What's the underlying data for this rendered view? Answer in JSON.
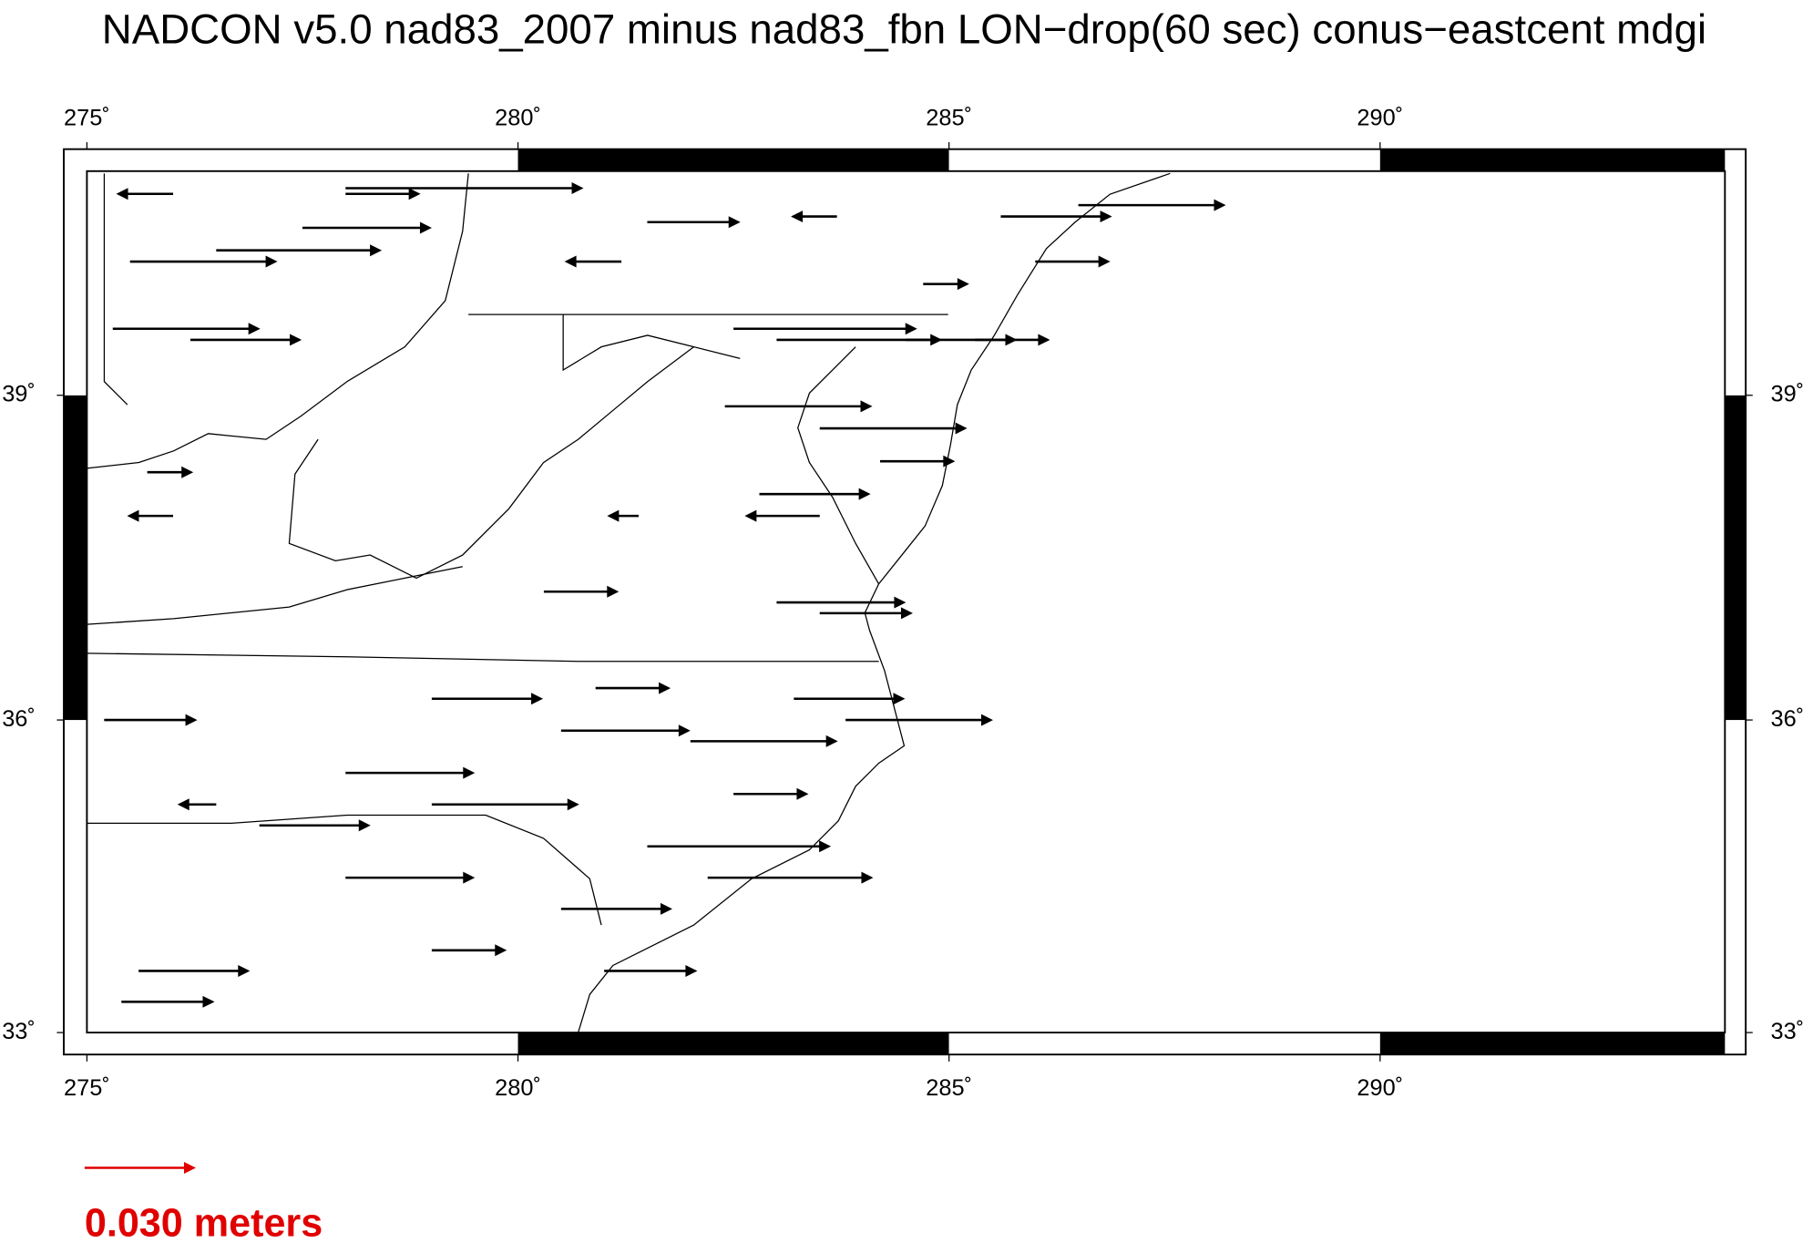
{
  "map": {
    "title": "NADCON v5.0 nad83_2007 minus nad83_fbn LON−drop(60 sec) conus−eastcent mdgi",
    "projection": "mercator",
    "xlim": [
      275,
      294
    ],
    "ylim": [
      33,
      41
    ],
    "xticks": [
      {
        "value": 275,
        "label": "275˚"
      },
      {
        "value": 280,
        "label": "280˚"
      },
      {
        "value": 285,
        "label": "285˚"
      },
      {
        "value": 290,
        "label": "290˚"
      }
    ],
    "yticks": [
      {
        "value": 33,
        "label": "33˚"
      },
      {
        "value": 36,
        "label": "36˚"
      },
      {
        "value": 39,
        "label": "39˚"
      }
    ],
    "vector_color": "#000000",
    "vectors": {
      "lon": [
        276.0,
        275.5,
        276.5,
        277.5,
        275.3,
        276.2,
        278.0,
        278.0,
        281.5,
        281.2,
        283.7,
        284.7,
        285.6,
        286.5,
        286.0,
        282.5,
        283.0,
        284.5,
        285.3,
        282.4,
        283.5,
        284.2,
        282.8,
        283.5,
        281.4,
        283.0,
        283.5,
        280.3,
        276.0,
        275.7,
        275.2,
        280.9,
        279.0,
        280.5,
        282.0,
        283.2,
        283.8,
        278.0,
        277.0,
        279.0,
        281.5,
        282.2,
        280.5,
        279.0,
        281.0,
        275.6,
        275.4,
        278.0,
        282.5,
        276.5
      ],
      "lat": [
        40.8,
        40.2,
        40.3,
        40.5,
        39.6,
        39.5,
        40.8,
        40.85,
        40.55,
        40.2,
        40.6,
        40.0,
        40.6,
        40.7,
        40.2,
        39.6,
        39.5,
        39.5,
        39.5,
        38.9,
        38.7,
        38.4,
        38.1,
        37.9,
        37.9,
        37.1,
        37.0,
        37.2,
        37.9,
        38.3,
        36.0,
        36.3,
        36.2,
        35.9,
        35.8,
        36.2,
        36.0,
        35.5,
        35.0,
        35.2,
        34.8,
        34.5,
        34.2,
        33.8,
        33.6,
        33.6,
        33.3,
        34.5,
        35.3,
        35.2
      ],
      "east": [
        -0.015,
        0.04,
        0.045,
        0.035,
        0.04,
        0.03,
        0.02,
        0.065,
        0.025,
        -0.015,
        -0.012,
        0.012,
        0.03,
        0.04,
        0.02,
        0.05,
        0.045,
        0.03,
        0.02,
        0.04,
        0.04,
        0.02,
        0.03,
        -0.02,
        -0.008,
        0.035,
        0.025,
        0.02,
        -0.012,
        0.012,
        0.025,
        0.02,
        0.03,
        0.035,
        0.04,
        0.03,
        0.04,
        0.035,
        0.03,
        0.04,
        0.05,
        0.045,
        0.03,
        0.02,
        0.025,
        0.03,
        0.025,
        0.035,
        0.02,
        -0.01
      ]
    },
    "scale_arrow": {
      "value": 0.03,
      "label": "0.030 meters",
      "color": "#e00000"
    }
  }
}
